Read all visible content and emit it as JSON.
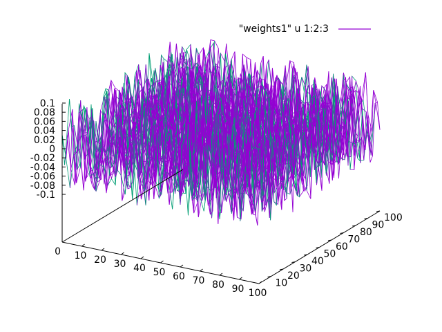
{
  "chart_data": {
    "type": "surface",
    "legend": {
      "label": "\"weights1\" u 1:2:3",
      "color": "#9400d3",
      "position": "top-right"
    },
    "colors": {
      "top": "#9400d3",
      "bottom": "#009e73"
    },
    "x_range": [
      0,
      100
    ],
    "y_range": [
      0,
      100
    ],
    "z_range": [
      -0.1,
      0.1
    ],
    "x_ticks": [
      "0",
      "10",
      "20",
      "30",
      "40",
      "50",
      "60",
      "70",
      "80",
      "90",
      "100"
    ],
    "y_ticks": [
      "10",
      "20",
      "30",
      "40",
      "50",
      "60",
      "70",
      "80",
      "90",
      "100"
    ],
    "z_ticks": [
      "0.1",
      "0.08",
      "0.06",
      "0.04",
      "0.02",
      "0",
      "-0.02",
      "-0.04",
      "-0.06",
      "-0.08",
      "-0.1"
    ],
    "grid_resolution": [
      50,
      50
    ],
    "noise_amplitude": 0.1,
    "grid": false
  }
}
